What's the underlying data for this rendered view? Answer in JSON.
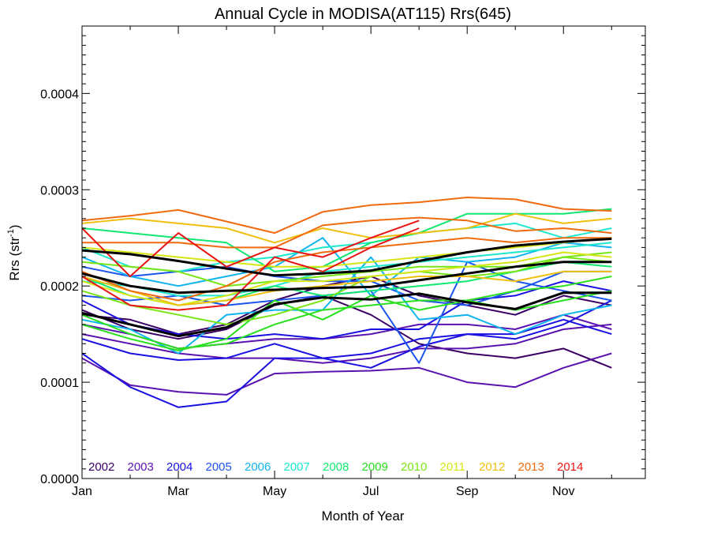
{
  "chart_data": {
    "type": "line",
    "title": "Annual Cycle in MODISA(AT115) Rrs(645)",
    "xlabel": "Month of Year",
    "ylabel_main": "Rrs (str",
    "ylabel_sup": "-1",
    "ylabel_end": ")",
    "xlim": [
      1,
      12.7
    ],
    "ylim": [
      0,
      0.00047
    ],
    "x_ticks": [
      {
        "value": 1,
        "label": "Jan"
      },
      {
        "value": 3,
        "label": "Mar"
      },
      {
        "value": 5,
        "label": "May"
      },
      {
        "value": 7,
        "label": "Jul"
      },
      {
        "value": 9,
        "label": "Sep"
      },
      {
        "value": 11,
        "label": "Nov"
      }
    ],
    "y_ticks": [
      {
        "value": 0,
        "label": "0.0000"
      },
      {
        "value": 0.0001,
        "label": "0.0001"
      },
      {
        "value": 0.0002,
        "label": "0.0002"
      },
      {
        "value": 0.0003,
        "label": "0.0003"
      },
      {
        "value": 0.0004,
        "label": "0.0004"
      }
    ],
    "legend_position": "bottom-left",
    "legend": [
      {
        "label": "2002",
        "color": "#3a0066"
      },
      {
        "label": "2003",
        "color": "#5a12b0"
      },
      {
        "label": "2004",
        "color": "#1a10e0"
      },
      {
        "label": "2005",
        "color": "#1c55ee"
      },
      {
        "label": "2006",
        "color": "#10b4ee"
      },
      {
        "label": "2007",
        "color": "#1ee8cc"
      },
      {
        "label": "2008",
        "color": "#10e870"
      },
      {
        "label": "2009",
        "color": "#2ae01e"
      },
      {
        "label": "2010",
        "color": "#78e614"
      },
      {
        "label": "2011",
        "color": "#d6e614"
      },
      {
        "label": "2012",
        "color": "#f0c010"
      },
      {
        "label": "2013",
        "color": "#f06a10"
      },
      {
        "label": "2014",
        "color": "#e81414"
      }
    ],
    "series": [
      {
        "color": "#3a0066",
        "width": 2,
        "x": [
          1,
          2,
          3,
          4,
          5,
          6,
          7,
          8,
          9,
          10,
          11,
          12
        ],
        "y": [
          0.000175,
          0.000155,
          0.000145,
          0.000155,
          0.00018,
          0.00019,
          0.00017,
          0.00014,
          0.00013,
          0.000125,
          0.000135,
          0.000115
        ]
      },
      {
        "color": "#3a0066",
        "width": 2,
        "x": [
          1,
          2,
          3,
          4,
          5,
          6,
          7,
          8,
          9,
          10,
          11,
          12
        ],
        "y": [
          0.00017,
          0.000165,
          0.00015,
          0.00016,
          0.000185,
          0.0002,
          0.00021,
          0.00019,
          0.00018,
          0.00017,
          0.00019,
          0.00018
        ]
      },
      {
        "color": "#5a12b0",
        "width": 2,
        "x": [
          1,
          2,
          3,
          4,
          5,
          6,
          7,
          8,
          9,
          10,
          11,
          12
        ],
        "y": [
          0.000125,
          9.7e-05,
          9e-05,
          8.7e-05,
          0.000109,
          0.000111,
          0.000112,
          0.000115,
          0.0001,
          9.5e-05,
          0.000115,
          0.00013
        ]
      },
      {
        "color": "#5a12b0",
        "width": 2,
        "x": [
          1,
          2,
          3,
          4,
          5,
          6,
          7,
          8,
          9,
          10,
          11,
          12
        ],
        "y": [
          0.00015,
          0.00014,
          0.00013,
          0.000125,
          0.000125,
          0.00012,
          0.000125,
          0.000135,
          0.000135,
          0.00014,
          0.000155,
          0.00016
        ]
      },
      {
        "color": "#5a12b0",
        "width": 2,
        "x": [
          1,
          2,
          3,
          4,
          5,
          6,
          7,
          8,
          9,
          10,
          11,
          12
        ],
        "y": [
          0.00016,
          0.00015,
          0.000135,
          0.00014,
          0.000145,
          0.000145,
          0.00015,
          0.00016,
          0.00016,
          0.000155,
          0.00017,
          0.000155
        ]
      },
      {
        "color": "#1a10e0",
        "width": 2,
        "x": [
          1,
          2,
          3,
          4,
          5,
          6,
          7,
          8,
          9,
          10,
          11,
          12
        ],
        "y": [
          0.00013,
          9.5e-05,
          7.4e-05,
          8e-05,
          0.000125,
          0.000125,
          0.000115,
          0.000137,
          0.00015,
          0.00015,
          0.000165,
          0.00015
        ]
      },
      {
        "color": "#1a10e0",
        "width": 2,
        "x": [
          1,
          2,
          3,
          4,
          5,
          6,
          7,
          8,
          9,
          10,
          11,
          12
        ],
        "y": [
          0.000145,
          0.00013,
          0.000123,
          0.000125,
          0.00014,
          0.000125,
          0.00013,
          0.000145,
          0.00015,
          0.000145,
          0.00016,
          0.000185
        ]
      },
      {
        "color": "#1a10e0",
        "width": 2,
        "x": [
          1,
          2,
          3,
          4,
          5,
          6,
          7,
          8,
          9,
          10,
          11,
          12
        ],
        "y": [
          0.000185,
          0.00016,
          0.00015,
          0.000145,
          0.00015,
          0.000145,
          0.000155,
          0.000155,
          0.000185,
          0.00019,
          0.000205,
          0.000195
        ]
      },
      {
        "color": "#1c55ee",
        "width": 2,
        "x": [
          1,
          2,
          3,
          4,
          5,
          6,
          7,
          8,
          9,
          10,
          11,
          12
        ],
        "y": [
          0.00019,
          0.000185,
          0.00019,
          0.00018,
          0.000185,
          0.00019,
          0.000195,
          0.00012,
          0.000225,
          0.000205,
          0.000195,
          0.000185
        ]
      },
      {
        "color": "#1c55ee",
        "width": 2,
        "x": [
          1,
          2,
          3,
          4,
          5,
          6,
          7,
          8,
          9,
          10,
          11,
          12
        ],
        "y": [
          0.00022,
          0.00021,
          0.000215,
          0.00022,
          0.00021,
          0.000205,
          0.000205,
          0.000185,
          0.00018,
          0.000195,
          0.000215,
          0.000215
        ]
      },
      {
        "color": "#10b4ee",
        "width": 2,
        "x": [
          1,
          2,
          3,
          4,
          5,
          6,
          7,
          8,
          9,
          10,
          11,
          12
        ],
        "y": [
          0.000165,
          0.000155,
          0.00013,
          0.00017,
          0.000175,
          0.000175,
          0.00023,
          0.000165,
          0.00017,
          0.00015,
          0.00017,
          0.00018
        ]
      },
      {
        "color": "#10b4ee",
        "width": 2,
        "x": [
          1,
          2,
          3,
          4,
          5,
          6,
          7,
          8,
          9,
          10,
          11,
          12
        ],
        "y": [
          0.00023,
          0.00021,
          0.0002,
          0.00021,
          0.00022,
          0.00025,
          0.00019,
          0.00023,
          0.000225,
          0.00023,
          0.000245,
          0.00024
        ]
      },
      {
        "color": "#1ee8cc",
        "width": 2,
        "x": [
          1,
          2,
          3,
          4,
          5,
          6,
          7,
          8,
          9,
          10,
          11,
          12
        ],
        "y": [
          0.00024,
          0.00022,
          0.000215,
          0.000225,
          0.00023,
          0.00024,
          0.000245,
          0.000255,
          0.00026,
          0.000265,
          0.00025,
          0.00026
        ]
      },
      {
        "color": "#1ee8cc",
        "width": 2,
        "x": [
          1,
          2,
          3,
          4,
          5,
          6,
          7,
          8,
          9,
          10,
          11,
          12
        ],
        "y": [
          0.000205,
          0.0002,
          0.00019,
          0.00019,
          0.0002,
          0.000215,
          0.00022,
          0.000225,
          0.00023,
          0.000235,
          0.00024,
          0.000245
        ]
      },
      {
        "color": "#10e870",
        "width": 2,
        "x": [
          1,
          2,
          3,
          4,
          5,
          6,
          7,
          8,
          9,
          10,
          11,
          12
        ],
        "y": [
          0.00026,
          0.000255,
          0.00025,
          0.000245,
          0.000215,
          0.00022,
          0.000245,
          0.000255,
          0.000275,
          0.000275,
          0.000275,
          0.00028
        ]
      },
      {
        "color": "#10e870",
        "width": 2,
        "x": [
          1,
          2,
          3,
          4,
          5,
          6,
          7,
          8,
          9,
          10,
          11,
          12
        ],
        "y": [
          0.00021,
          0.00019,
          0.00018,
          0.000185,
          0.0002,
          0.00019,
          0.000195,
          0.0002,
          0.000205,
          0.000215,
          0.000225,
          0.00022
        ]
      },
      {
        "color": "#2ae01e",
        "width": 2,
        "x": [
          1,
          2,
          3,
          4,
          5,
          6,
          7,
          8,
          9,
          10,
          11,
          12
        ],
        "y": [
          0.00017,
          0.00015,
          0.000135,
          0.00014,
          0.00016,
          0.000175,
          0.00018,
          0.000185,
          0.000185,
          0.000195,
          0.0002,
          0.00021
        ]
      },
      {
        "color": "#2ae01e",
        "width": 2,
        "x": [
          1,
          2,
          3,
          4,
          5,
          6,
          7,
          8,
          9,
          10,
          11,
          12
        ],
        "y": [
          0.00016,
          0.000145,
          0.000133,
          0.000145,
          0.000185,
          0.000165,
          0.00019,
          0.000175,
          0.000185,
          0.000175,
          0.000185,
          0.000195
        ]
      },
      {
        "color": "#78e614",
        "width": 2,
        "x": [
          1,
          2,
          3,
          4,
          5,
          6,
          7,
          8,
          9,
          10,
          11,
          12
        ],
        "y": [
          0.000195,
          0.00018,
          0.00017,
          0.00016,
          0.00017,
          0.000185,
          0.00021,
          0.000215,
          0.00021,
          0.000215,
          0.00023,
          0.000235
        ]
      },
      {
        "color": "#78e614",
        "width": 2,
        "x": [
          1,
          2,
          3,
          4,
          5,
          6,
          7,
          8,
          9,
          10,
          11,
          12
        ],
        "y": [
          0.000225,
          0.00022,
          0.000215,
          0.0002,
          0.000205,
          0.00021,
          0.000215,
          0.00022,
          0.00022,
          0.00022,
          0.00023,
          0.000225
        ]
      },
      {
        "color": "#d6e614",
        "width": 2,
        "x": [
          1,
          2,
          3,
          4,
          5,
          6,
          7,
          8,
          9,
          10,
          11,
          12
        ],
        "y": [
          0.000205,
          0.00019,
          0.00018,
          0.00019,
          0.000205,
          0.000205,
          0.00021,
          0.000215,
          0.00022,
          0.000225,
          0.000235,
          0.00023
        ]
      },
      {
        "color": "#d6e614",
        "width": 2,
        "x": [
          1,
          2,
          3,
          4,
          5,
          6,
          7,
          8,
          9,
          10,
          11,
          12
        ],
        "y": [
          0.00024,
          0.000235,
          0.00023,
          0.000225,
          0.00022,
          0.00022,
          0.000225,
          0.00023,
          0.000235,
          0.00024,
          0.000245,
          0.00025
        ]
      },
      {
        "color": "#f0c010",
        "width": 2,
        "x": [
          1,
          2,
          3,
          4,
          5,
          6,
          7,
          8,
          9,
          10,
          11,
          12
        ],
        "y": [
          0.000265,
          0.00027,
          0.000265,
          0.00026,
          0.000245,
          0.00026,
          0.00025,
          0.000255,
          0.00026,
          0.000275,
          0.000265,
          0.00027
        ]
      },
      {
        "color": "#f0c010",
        "width": 2,
        "x": [
          1,
          2,
          3,
          4,
          5,
          6,
          7,
          8,
          9,
          10,
          11,
          12
        ],
        "y": [
          0.00021,
          0.000195,
          0.00018,
          0.000185,
          0.000195,
          0.0002,
          0.000205,
          0.00021,
          0.00021,
          0.000205,
          0.000215,
          0.000215
        ]
      },
      {
        "color": "#f06a10",
        "width": 2,
        "x": [
          1,
          2,
          3,
          4,
          5,
          6,
          7,
          8,
          9,
          10,
          11,
          12
        ],
        "y": [
          0.000268,
          0.000273,
          0.000279,
          0.000267,
          0.000255,
          0.000277,
          0.000284,
          0.000287,
          0.000292,
          0.00029,
          0.00028,
          0.000278
        ]
      },
      {
        "color": "#f06a10",
        "width": 2,
        "x": [
          1,
          2,
          3,
          4,
          5,
          6,
          7,
          8,
          9,
          10,
          11,
          12
        ],
        "y": [
          0.000245,
          0.000245,
          0.000245,
          0.00024,
          0.00024,
          0.000263,
          0.000268,
          0.000271,
          0.000268,
          0.000257,
          0.00026,
          0.000255
        ]
      },
      {
        "color": "#f06a10",
        "width": 2,
        "x": [
          1,
          2,
          3,
          4,
          5,
          6,
          7,
          8,
          9,
          10,
          11,
          12
        ],
        "y": [
          0.000215,
          0.000195,
          0.000185,
          0.0002,
          0.000225,
          0.000235,
          0.00024,
          0.000245,
          0.00025,
          0.000245,
          0.00025,
          0.00025
        ]
      },
      {
        "color": "#e81414",
        "width": 2,
        "x": [
          1,
          2,
          3,
          4,
          5,
          6,
          7,
          8
        ],
        "y": [
          0.00026,
          0.00021,
          0.000255,
          0.00022,
          0.00024,
          0.00023,
          0.00025,
          0.000268
        ]
      },
      {
        "color": "#e81414",
        "width": 2,
        "x": [
          1,
          2,
          3,
          4,
          5,
          6,
          7,
          8
        ],
        "y": [
          0.00021,
          0.00018,
          0.000175,
          0.00018,
          0.00023,
          0.000215,
          0.00024,
          0.00026
        ]
      },
      {
        "color": "#000000",
        "width": 3,
        "x": [
          1,
          2,
          3,
          4,
          5,
          6,
          7,
          8,
          9,
          10,
          11,
          12
        ],
        "y": [
          0.000213,
          0.0002,
          0.000193,
          0.000195,
          0.000196,
          0.000198,
          0.000199,
          0.000206,
          0.000213,
          0.00022,
          0.000225,
          0.000225
        ]
      },
      {
        "color": "#000000",
        "width": 3,
        "x": [
          1,
          2,
          3,
          4,
          5,
          6,
          7,
          8,
          9,
          10,
          11,
          12
        ],
        "y": [
          0.000237,
          0.000233,
          0.000226,
          0.000218,
          0.000211,
          0.000213,
          0.000216,
          0.000226,
          0.000235,
          0.000242,
          0.000246,
          0.000249
        ]
      },
      {
        "color": "#000000",
        "width": 3,
        "x": [
          1,
          2,
          3,
          4,
          5,
          6,
          7,
          8,
          9,
          10,
          11,
          12
        ],
        "y": [
          0.000172,
          0.00016,
          0.000148,
          0.000157,
          0.000181,
          0.000188,
          0.000186,
          0.000192,
          0.000183,
          0.000176,
          0.000193,
          0.000193
        ]
      }
    ]
  }
}
